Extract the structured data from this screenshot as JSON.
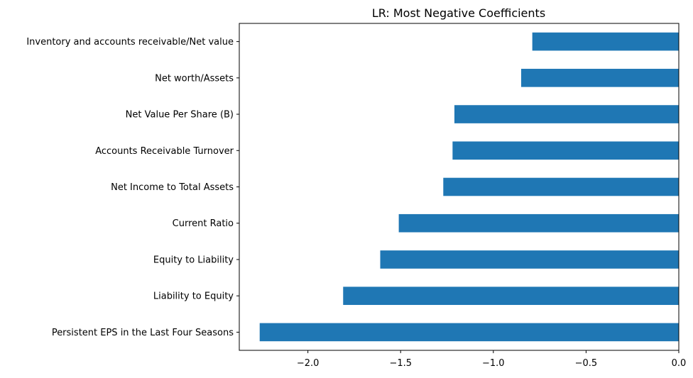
{
  "chart_data": {
    "type": "bar",
    "orientation": "horizontal",
    "title": "LR: Most Negative Coefficients",
    "xlabel": "",
    "ylabel": "",
    "bar_color": "#1f77b4",
    "grid": false,
    "legend": "none",
    "xlim": [
      -2.37,
      0.0
    ],
    "xticks": [
      -2.0,
      -1.5,
      -1.0,
      -0.5,
      0.0
    ],
    "xtick_labels": [
      "−2.0",
      "−1.5",
      "−1.0",
      "−0.5",
      "0.0"
    ],
    "categories": [
      " Inventory and accounts receivable/Net value",
      " Net worth/Assets",
      " Net Value Per Share (B)",
      " Accounts Receivable Turnover",
      " Net Income to Total Assets",
      " Current Ratio",
      " Equity to Liability",
      " Liability to Equity",
      " Persistent EPS in the Last Four Seasons"
    ],
    "values": [
      -0.79,
      -0.85,
      -1.21,
      -1.22,
      -1.27,
      -1.51,
      -1.61,
      -1.81,
      -2.26
    ]
  }
}
